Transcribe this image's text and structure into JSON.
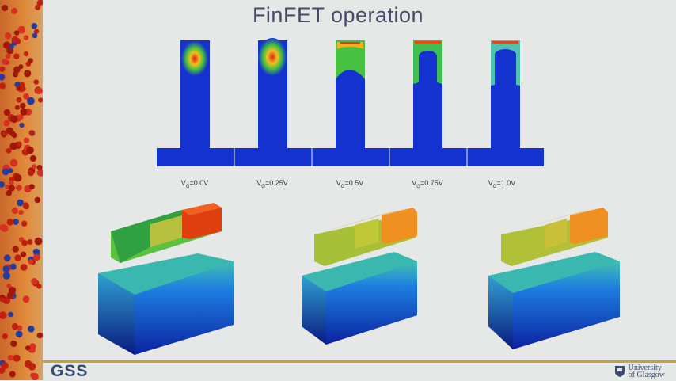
{
  "slide": {
    "title": "FinFET operation",
    "gate_labels": [
      {
        "main": "V",
        "sub": "G",
        "value": "=0.0V"
      },
      {
        "main": "V",
        "sub": "G",
        "value": "=0.25V"
      },
      {
        "main": "V",
        "sub": "G",
        "value": "=0.5V"
      },
      {
        "main": "V",
        "sub": "G",
        "value": "=0.75V"
      },
      {
        "main": "V",
        "sub": "G",
        "value": "=1.0V"
      }
    ]
  },
  "footer": {
    "group_logo": "GSS",
    "university_line1": "University",
    "university_line2": "of Glasgow"
  },
  "colors": {
    "title": "#454a66",
    "fin_blue": "#1432d0",
    "accent_line": "#c8a040"
  },
  "icons": {
    "university_crest": "crest-icon"
  }
}
